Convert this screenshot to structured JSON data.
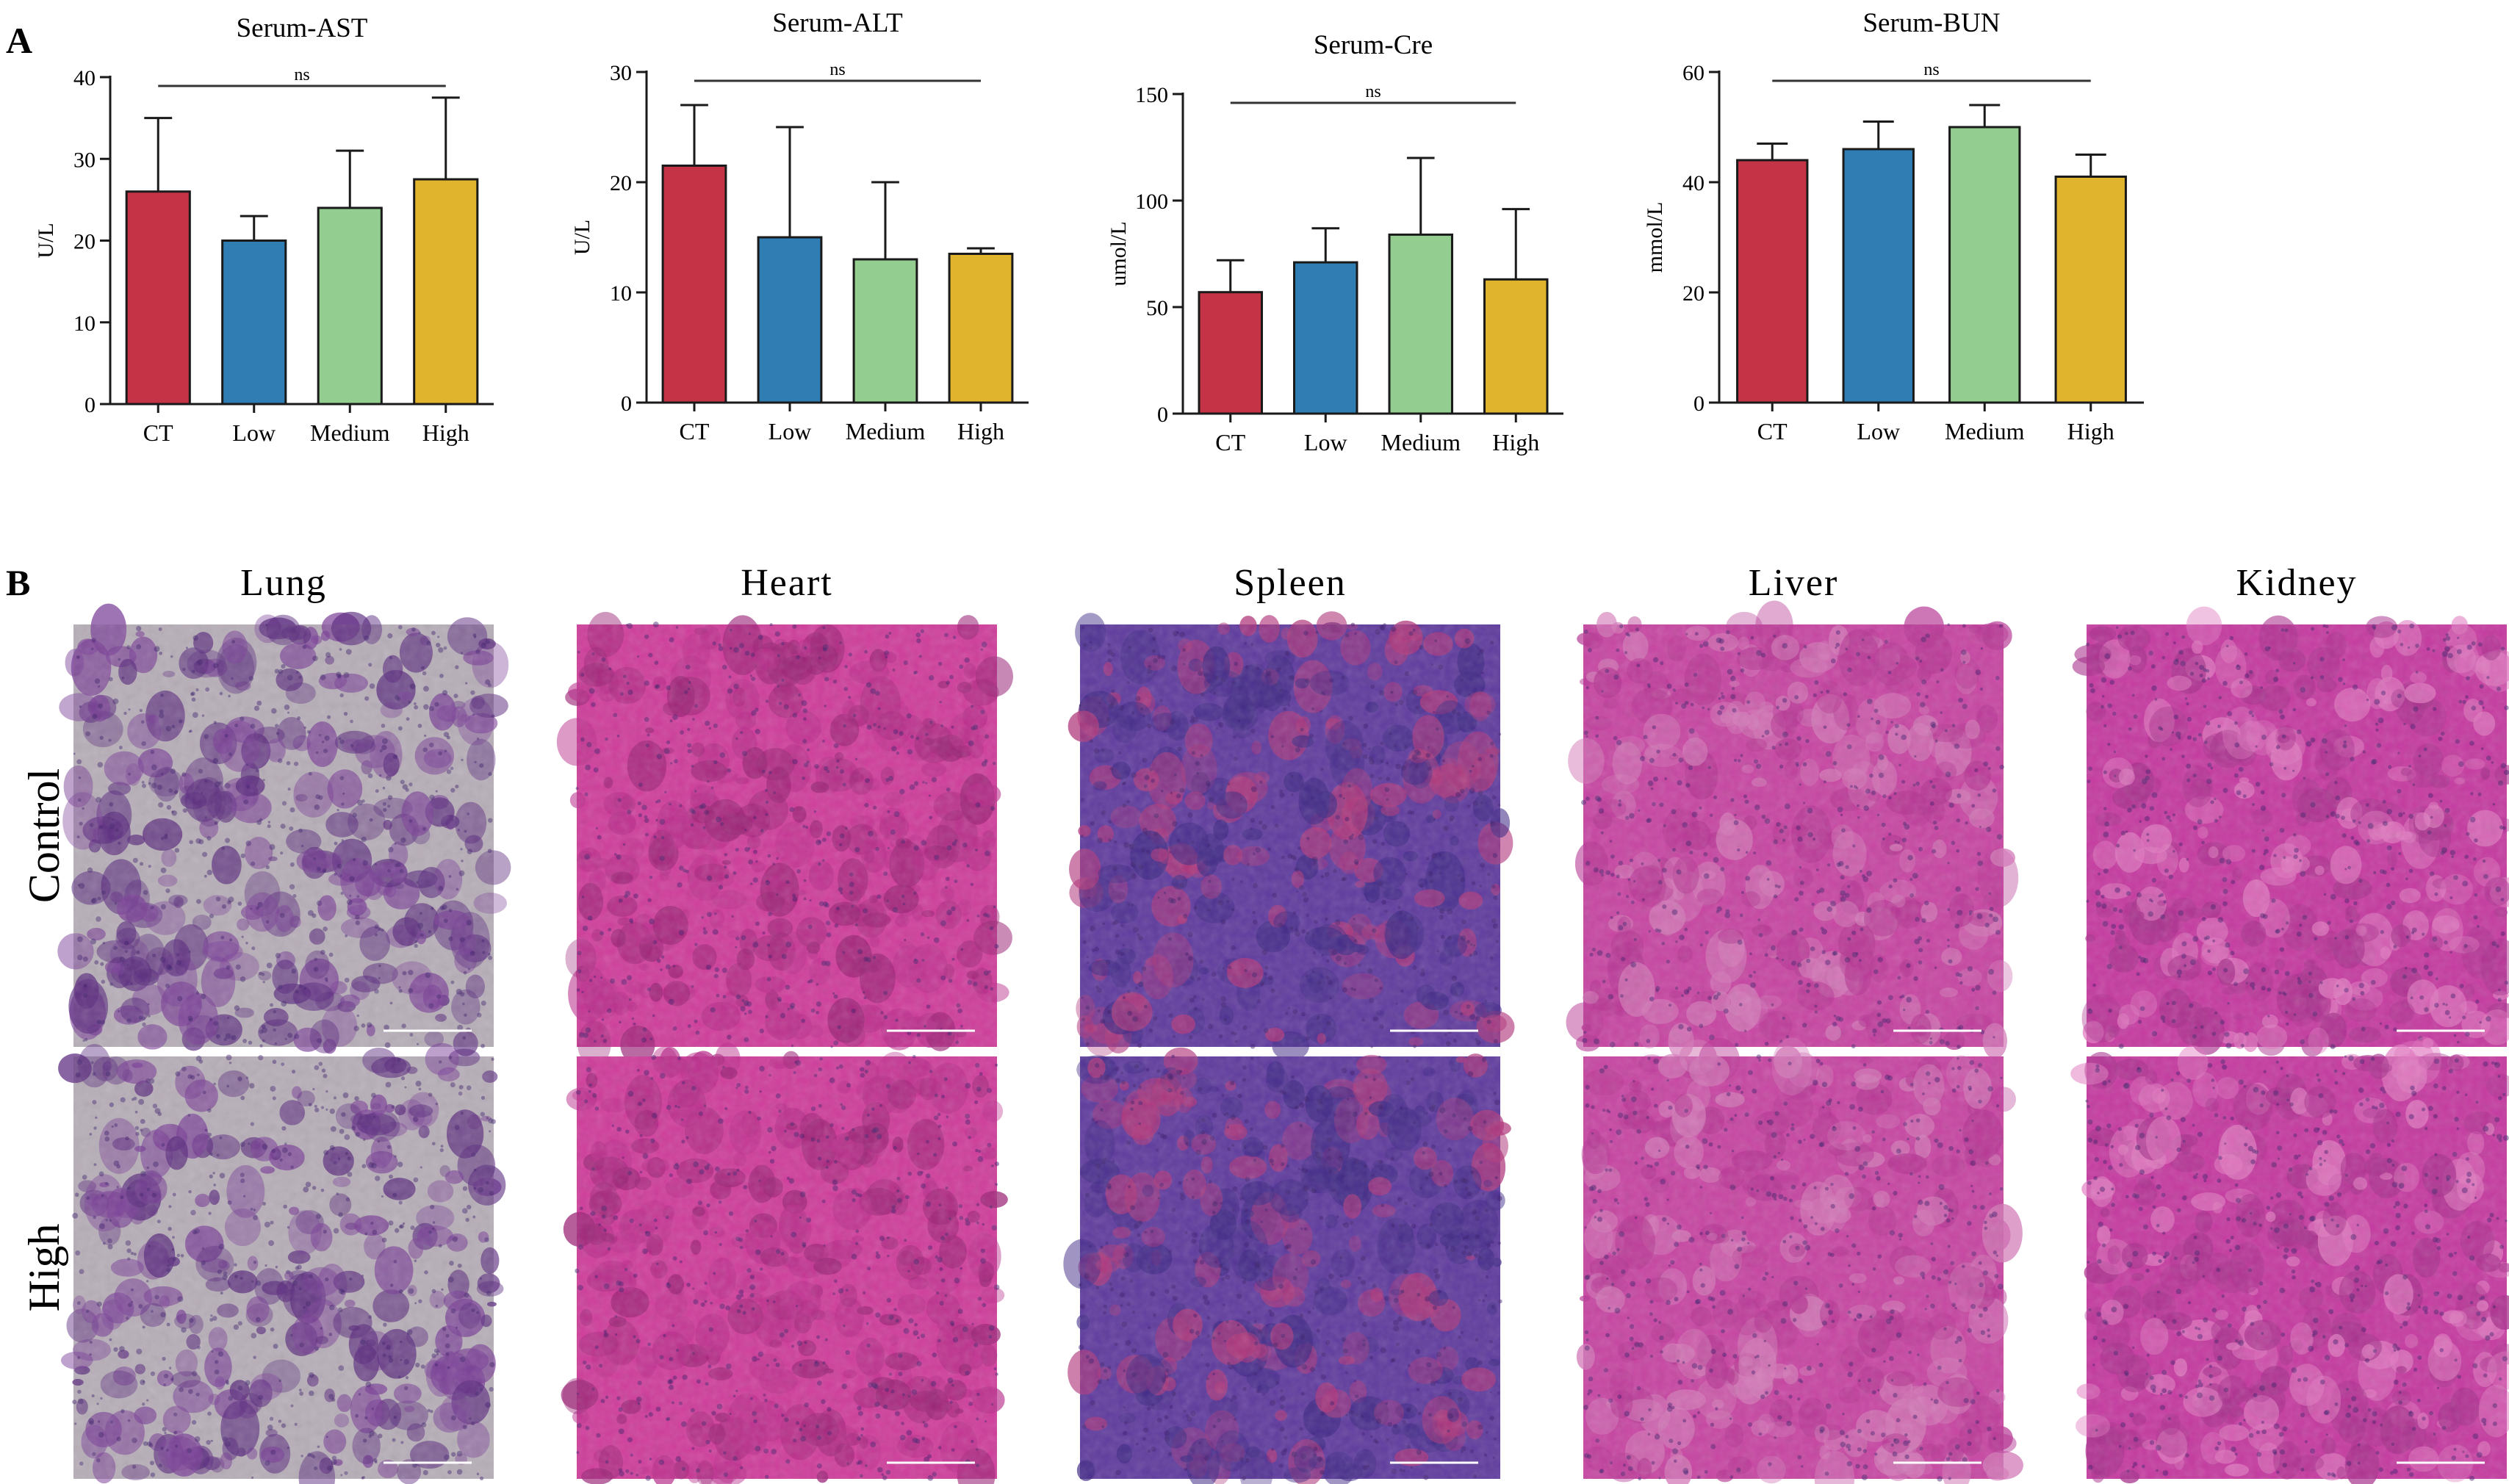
{
  "panels": {
    "a": "A",
    "b": "B"
  },
  "palette": {
    "CT": "#c43346",
    "Low": "#2f7db2",
    "Medium": "#93cd90",
    "High": "#e1b42e",
    "frame": "#1a1a1a"
  },
  "chart_data": [
    {
      "type": "bar",
      "title": "Serum-AST",
      "ylabel": "U/L",
      "categories": [
        "CT",
        "Low",
        "Medium",
        "High"
      ],
      "values": [
        26,
        20,
        24,
        27.5
      ],
      "error": [
        9,
        3,
        7,
        10
      ],
      "ylim": [
        0,
        40
      ],
      "yticks": [
        0,
        10,
        20,
        30,
        40
      ],
      "annotation": "ns",
      "grid": false
    },
    {
      "type": "bar",
      "title": "Serum-ALT",
      "ylabel": "U/L",
      "categories": [
        "CT",
        "Low",
        "Medium",
        "High"
      ],
      "values": [
        21.5,
        15,
        13,
        13.5
      ],
      "error": [
        5.5,
        10,
        7,
        0.5
      ],
      "ylim": [
        0,
        30
      ],
      "yticks": [
        0,
        10,
        20,
        30
      ],
      "annotation": "ns",
      "grid": false
    },
    {
      "type": "bar",
      "title": "Serum-Cre",
      "ylabel": "umol/L",
      "categories": [
        "CT",
        "Low",
        "Medium",
        "High"
      ],
      "values": [
        57,
        71,
        84,
        63
      ],
      "error": [
        15,
        16,
        36,
        33
      ],
      "ylim": [
        0,
        150
      ],
      "yticks": [
        0,
        50,
        100,
        150
      ],
      "annotation": "ns",
      "grid": false
    },
    {
      "type": "bar",
      "title": "Serum-BUN",
      "ylabel": "mmol/L",
      "categories": [
        "CT",
        "Low",
        "Medium",
        "High"
      ],
      "values": [
        44,
        46,
        50,
        41
      ],
      "error": [
        3,
        5,
        4,
        4
      ],
      "ylim": [
        0,
        60
      ],
      "yticks": [
        0,
        20,
        40,
        60
      ],
      "annotation": "ns",
      "grid": false
    }
  ],
  "histology": {
    "columns": [
      {
        "name": "Lung",
        "bg": "#b7aeb8",
        "tissue": "#7a3f97",
        "accent": "#5a2a7e"
      },
      {
        "name": "Heart",
        "bg": "#cf3d9b",
        "tissue": "#b92f8c",
        "accent": "#9a2476"
      },
      {
        "name": "Spleen",
        "bg": "#5f3b9e",
        "tissue": "#402a86",
        "accent": "#b0387c"
      },
      {
        "name": "Liver",
        "bg": "#c745a2",
        "tissue": "#b53693",
        "accent": "#d37ab8"
      },
      {
        "name": "Kidney",
        "bg": "#c53aa0",
        "tissue": "#a8318d",
        "accent": "#e07ac0"
      }
    ],
    "rows": [
      "Control",
      "High"
    ]
  }
}
